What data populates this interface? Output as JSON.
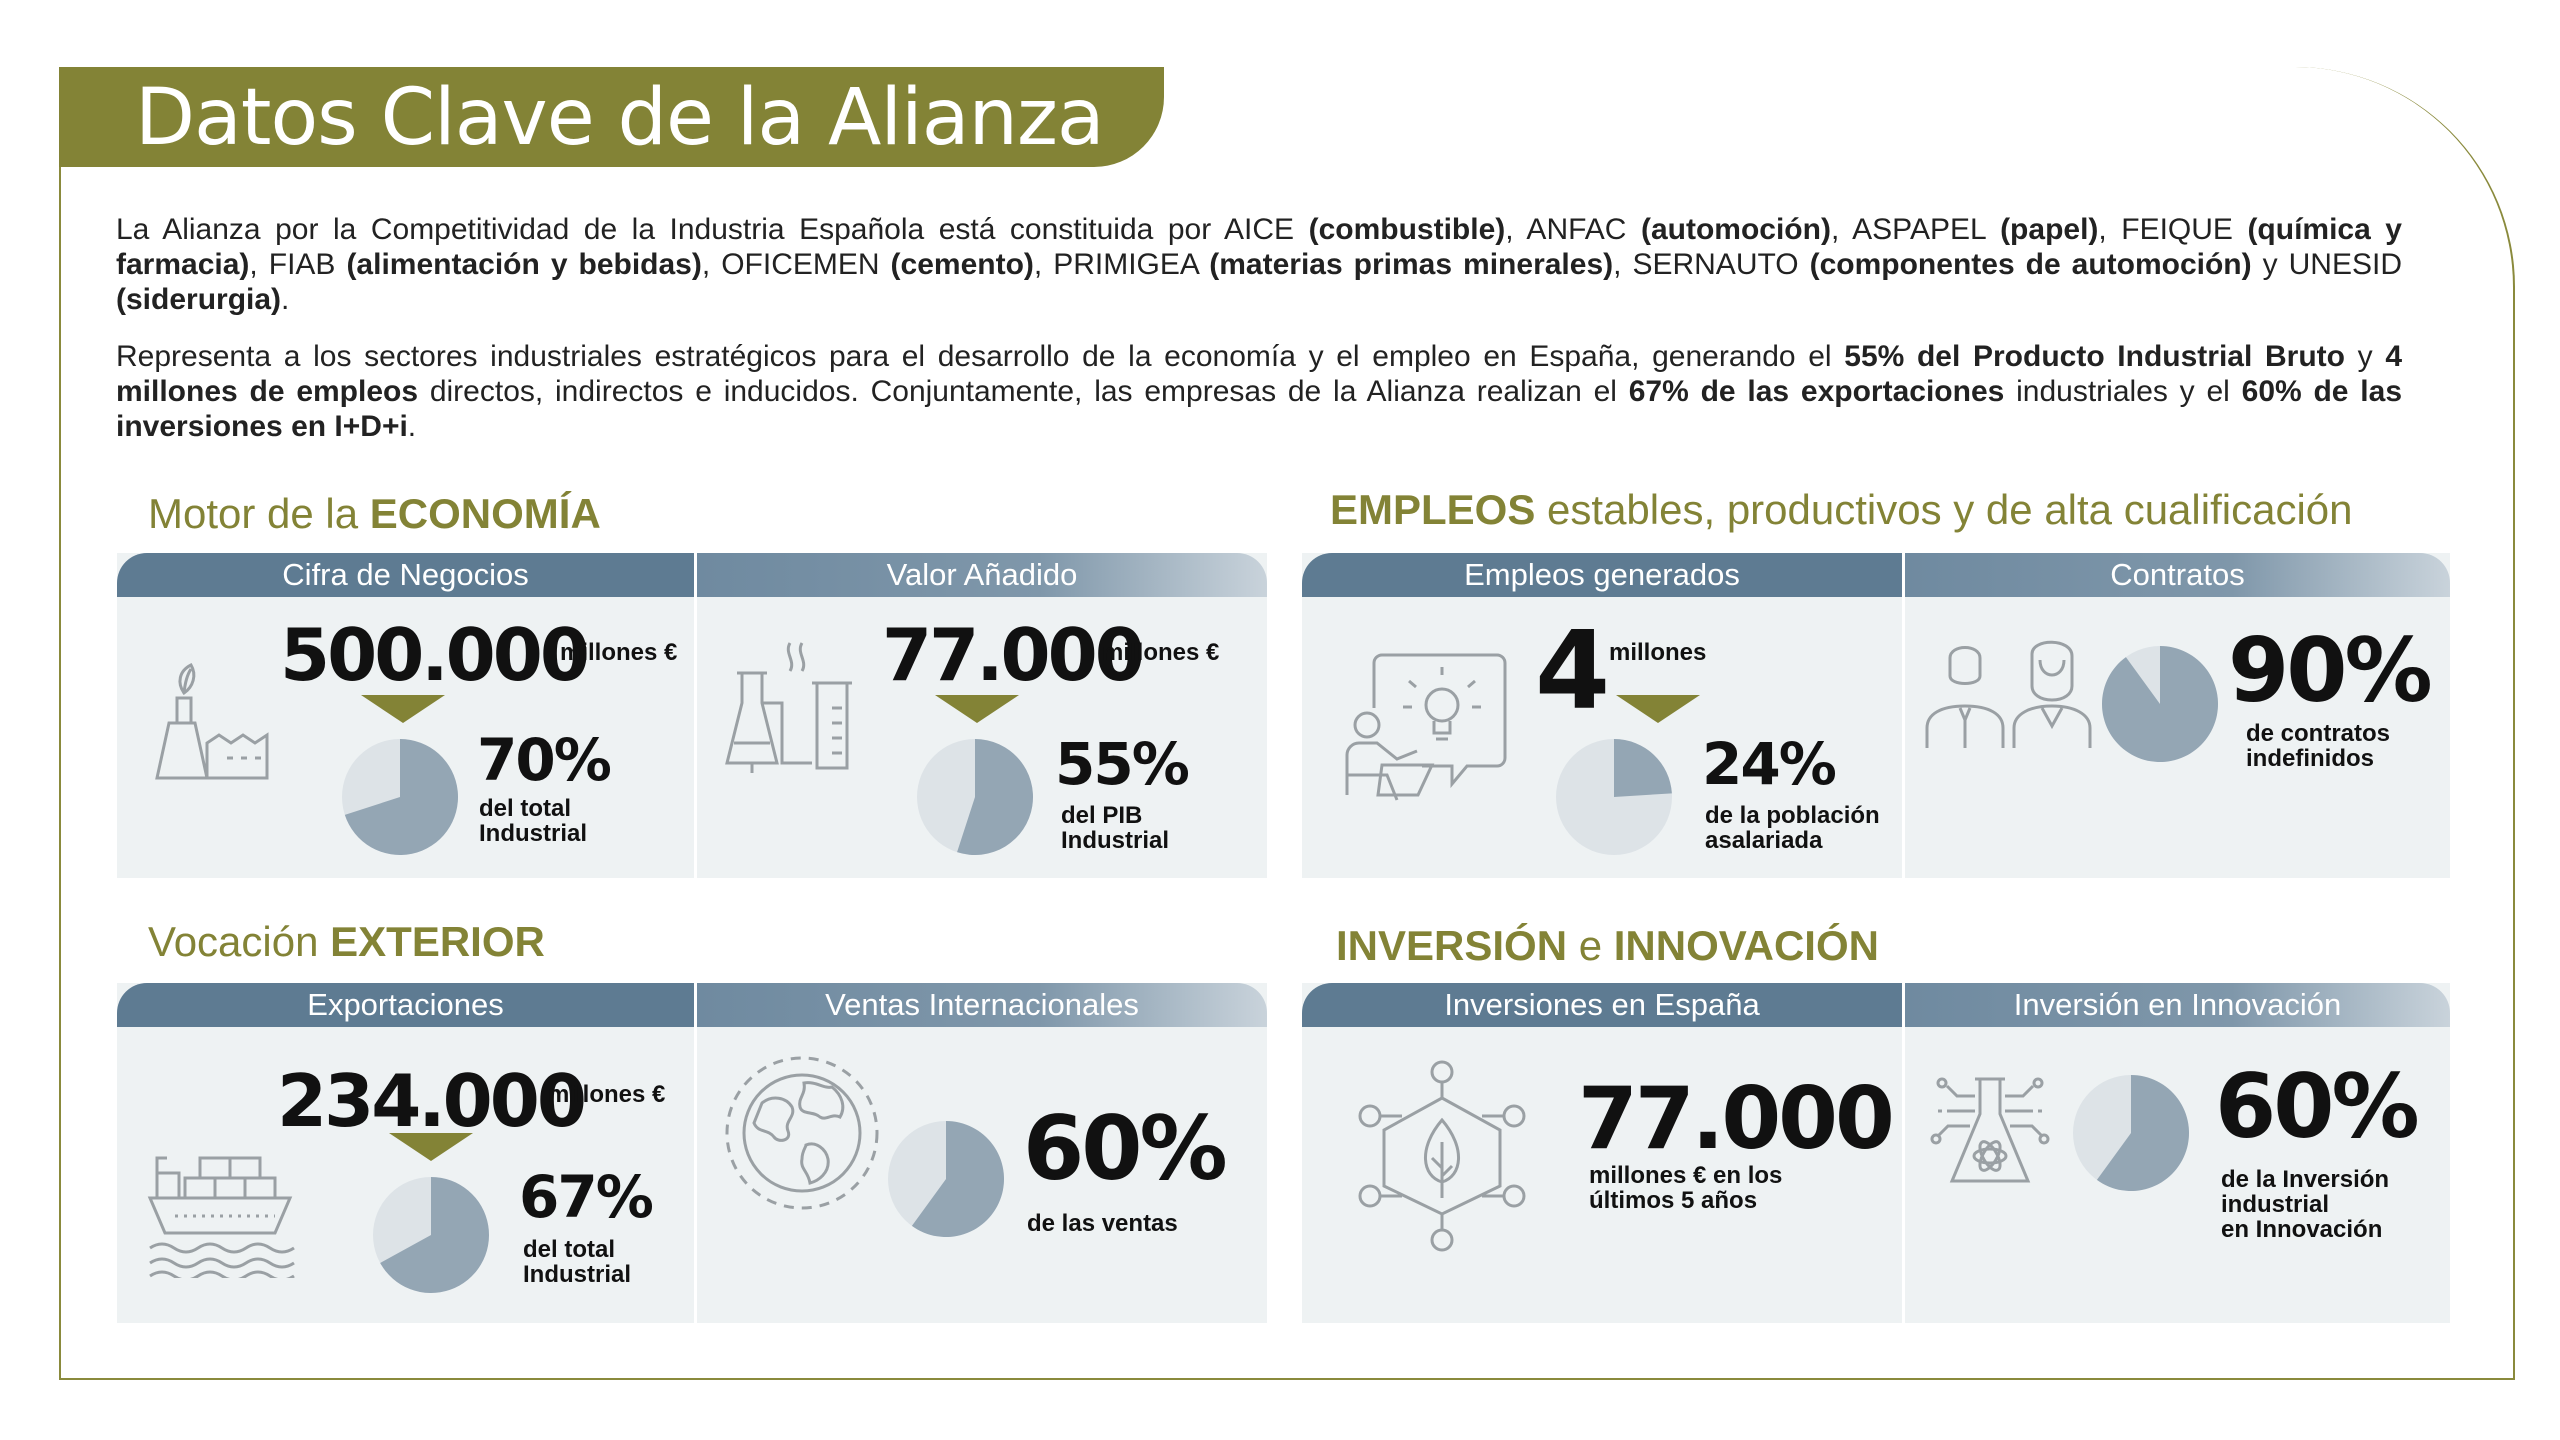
{
  "title": "Datos Clave de la Alianza",
  "intro": {
    "p1": [
      {
        "t": "La Alianza por la Competitividad de la Industria Española está constituida por AICE ",
        "b": false
      },
      {
        "t": "(combustible)",
        "b": true
      },
      {
        "t": ", ANFAC ",
        "b": false
      },
      {
        "t": "(automoción)",
        "b": true
      },
      {
        "t": ", ASPAPEL ",
        "b": false
      },
      {
        "t": "(papel)",
        "b": true
      },
      {
        "t": ", FEIQUE ",
        "b": false
      },
      {
        "t": "(química y farmacia)",
        "b": true
      },
      {
        "t": ", FIAB ",
        "b": false
      },
      {
        "t": "(alimentación y bebidas)",
        "b": true
      },
      {
        "t": ", OFICEMEN ",
        "b": false
      },
      {
        "t": "(cemento)",
        "b": true
      },
      {
        "t": ", PRIMIGEA ",
        "b": false
      },
      {
        "t": "(materias primas minerales)",
        "b": true
      },
      {
        "t": ", SERNAUTO ",
        "b": false
      },
      {
        "t": "(componentes de automoción)",
        "b": true
      },
      {
        "t": " y UNESID ",
        "b": false
      },
      {
        "t": "(siderurgia)",
        "b": true
      },
      {
        "t": ".",
        "b": false
      }
    ],
    "p2": [
      {
        "t": "Representa a los sectores industriales estratégicos para el desarrollo de la economía y el empleo en España, generando el ",
        "b": false
      },
      {
        "t": "55% del Producto Industrial Bruto",
        "b": true
      },
      {
        "t": " y ",
        "b": false
      },
      {
        "t": "4 millones de empleos",
        "b": true
      },
      {
        "t": " directos, indirectos e inducidos. Conjuntamente, las empresas de la Alianza realizan el ",
        "b": false
      },
      {
        "t": "67% de las exportaciones",
        "b": true
      },
      {
        "t": " industriales y el ",
        "b": false
      },
      {
        "t": "60% de las inversiones en I+D+i",
        "b": true
      },
      {
        "t": ".",
        "b": false
      }
    ]
  },
  "sections": {
    "economia": {
      "pre": "Motor de la ",
      "bold": "ECONOMÍA",
      "post": ""
    },
    "empleos": {
      "pre": "",
      "bold": "EMPLEOS",
      "post": " estables, productivos y de alta cualificación"
    },
    "exterior": {
      "pre": "Vocación ",
      "bold": "EXTERIOR",
      "post": ""
    },
    "inversion": {
      "pre": "",
      "bold": "INVERSIÓN",
      "mid": " e ",
      "bold2": "INNOVACIÓN"
    }
  },
  "cards": {
    "cifra": {
      "head": "Cifra de Negocios",
      "value": "500.000",
      "unit": "millones €",
      "pct": "70%",
      "pct_value": 0.7,
      "sub1": "del total",
      "sub2": "Industrial",
      "icon": "factory-icon"
    },
    "valor": {
      "head": "Valor Añadido",
      "value": "77.000",
      "unit": "millones €",
      "pct": "55%",
      "pct_value": 0.55,
      "sub1": "del PIB",
      "sub2": "Industrial",
      "icon": "lab-flask-icon"
    },
    "empleos": {
      "head": "Empleos generados",
      "value": "4",
      "unit": "millones",
      "pct": "24%",
      "pct_value": 0.24,
      "sub1": "de la población",
      "sub2": "asalariada",
      "icon": "idea-presentation-icon"
    },
    "contratos": {
      "head": "Contratos",
      "pct": "90%",
      "pct_value": 0.9,
      "sub1": "de contratos",
      "sub2": "indefinidos",
      "icon": "people-icon"
    },
    "exportaciones": {
      "head": "Exportaciones",
      "value": "234.000",
      "unit": "millones €",
      "pct": "67%",
      "pct_value": 0.67,
      "sub1": "del total",
      "sub2": "Industrial",
      "icon": "cargo-ship-icon"
    },
    "ventas": {
      "head": "Ventas Internacionales",
      "pct": "60%",
      "pct_value": 0.6,
      "sub1": "de las ventas",
      "icon": "globe-icon"
    },
    "inversiones": {
      "head": "Inversiones en España",
      "value": "77.000",
      "sub1": "millones € en los",
      "sub2": "últimos 5 años",
      "icon": "network-leaf-icon"
    },
    "innovacion": {
      "head": "Inversión en Innovación",
      "pct": "60%",
      "pct_value": 0.6,
      "sub1": "de la Inversión",
      "sub2": "industrial",
      "sub3": "en Innovación",
      "icon": "science-flask-icon"
    }
  },
  "colors": {
    "olive": "#838336",
    "header_blue": "#5e7b92",
    "pie_fill": "#94a6b4",
    "pie_bg": "#dde3e7",
    "card_bg": "#eef2f3"
  }
}
